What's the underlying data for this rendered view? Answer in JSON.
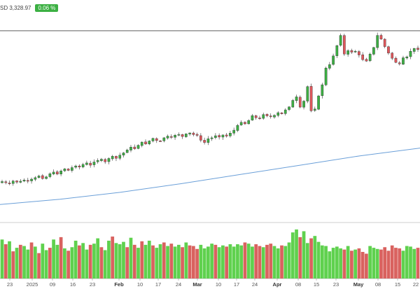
{
  "header": {
    "price_label": "SD 3,328.97",
    "change_badge": "0.06 %"
  },
  "colors": {
    "up": "#3cb043",
    "down": "#e0565b",
    "volume_up": "#5fd14e",
    "volume_down": "#d9625f",
    "moving_average": "#6a9fd8",
    "reference_line": "#444444",
    "grid": "#eeeeee"
  },
  "chart_data": {
    "type": "candlestick",
    "title": "",
    "xlabel": "",
    "ylabel": "",
    "grid": true,
    "x_tick_labels": [
      "23",
      "2025",
      "09",
      "16",
      "23",
      "Feb",
      "10",
      "17",
      "24",
      "Mar",
      "10",
      "17",
      "24",
      "Apr",
      "08",
      "15",
      "23",
      "May",
      "08",
      "15",
      "22"
    ],
    "close_series": [
      2620,
      2614,
      2610,
      2623,
      2617,
      2622,
      2628,
      2625,
      2633,
      2641,
      2650,
      2636,
      2645,
      2662,
      2671,
      2660,
      2677,
      2688,
      2680,
      2695,
      2704,
      2698,
      2712,
      2720,
      2708,
      2725,
      2734,
      2740,
      2726,
      2744,
      2756,
      2745,
      2762,
      2774,
      2790,
      2805,
      2796,
      2815,
      2832,
      2822,
      2838,
      2852,
      2840,
      2838,
      2855,
      2864,
      2857,
      2869,
      2873,
      2862,
      2876,
      2881,
      2872,
      2868,
      2842,
      2830,
      2850,
      2855,
      2866,
      2859,
      2870,
      2864,
      2880,
      2896,
      2922,
      2938,
      2930,
      2948,
      2974,
      2963,
      2958,
      2980,
      2973,
      2968,
      2976,
      2990,
      2984,
      3005,
      3021,
      3056,
      3075,
      3020,
      3052,
      3130,
      3000,
      3010,
      3080,
      3140,
      3230,
      3248,
      3295,
      3350,
      3405,
      3305,
      3323,
      3315,
      3320,
      3300,
      3275,
      3267,
      3305,
      3340,
      3405,
      3385,
      3345,
      3310,
      3282,
      3260,
      3252,
      3285,
      3290,
      3320,
      3335,
      3328.97
    ],
    "moving_average_series": [
      2497,
      2525,
      2562,
      2608,
      2658,
      2708,
      2758,
      2800
    ],
    "reference_line_value": 3430,
    "volume": [
      66,
      58,
      63,
      46,
      52,
      57,
      55,
      49,
      61,
      54,
      43,
      59,
      48,
      52,
      66,
      57,
      70,
      51,
      47,
      53,
      64,
      56,
      60,
      49,
      57,
      59,
      68,
      53,
      48,
      64,
      71,
      60,
      58,
      62,
      53,
      69,
      57,
      52,
      63,
      57,
      64,
      56,
      52,
      58,
      61,
      55,
      59,
      54,
      57,
      53,
      61,
      56,
      55,
      50,
      57,
      51,
      54,
      59,
      57,
      53,
      56,
      54,
      58,
      54,
      58,
      56,
      61,
      59,
      54,
      58,
      55,
      53,
      57,
      59,
      55,
      51,
      56,
      55,
      61,
      78,
      83,
      70,
      80,
      60,
      68,
      72,
      62,
      56,
      55,
      46,
      52,
      54,
      51,
      49,
      55,
      47,
      49,
      51,
      45,
      42,
      55,
      52,
      50,
      49,
      53,
      47,
      56,
      52,
      51,
      47,
      55,
      54,
      50,
      52
    ],
    "volume_direction": [
      1,
      -1,
      1,
      -1,
      1,
      -1,
      1,
      1,
      -1,
      1,
      -1,
      1,
      1,
      -1,
      1,
      1,
      -1,
      1,
      -1,
      1,
      1,
      -1,
      1,
      1,
      -1,
      1,
      1,
      -1,
      1,
      1,
      -1,
      1,
      1,
      1,
      -1,
      1,
      -1,
      1,
      -1,
      1,
      1,
      -1,
      1,
      1,
      -1,
      1,
      -1,
      1,
      1,
      -1,
      1,
      -1,
      -1,
      -1,
      1,
      1,
      1,
      1,
      -1,
      1,
      1,
      -1,
      1,
      1,
      1,
      1,
      -1,
      1,
      1,
      -1,
      -1,
      1,
      -1,
      -1,
      1,
      1,
      -1,
      1,
      1,
      1,
      1,
      -1,
      1,
      1,
      -1,
      1,
      1,
      1,
      1,
      1,
      1,
      1,
      1,
      -1,
      1,
      -1,
      1,
      -1,
      -1,
      -1,
      1,
      1,
      1,
      -1,
      -1,
      -1,
      -1,
      -1,
      -1,
      1,
      1,
      1,
      1,
      -1
    ]
  }
}
